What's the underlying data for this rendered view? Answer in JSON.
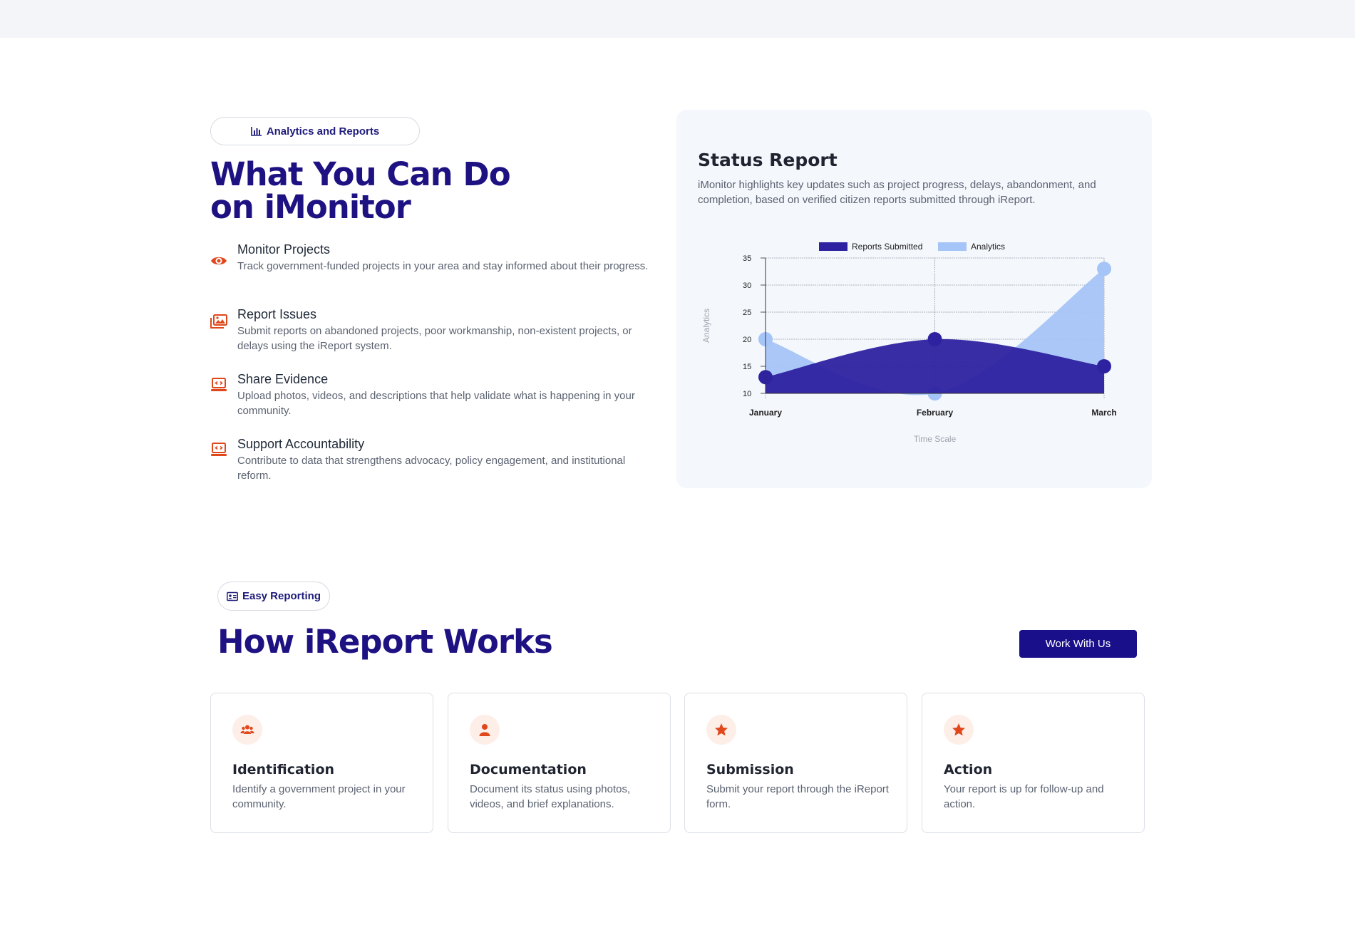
{
  "analytics_section": {
    "badge_icon": "bar-chart-icon",
    "badge_label": "Analytics and Reports",
    "title_line1": "What You Can Do",
    "title_line2": "on iMonitor",
    "features": [
      {
        "icon": "eye-icon",
        "title": "Monitor Projects",
        "description": "Track government-funded projects in your area and stay informed about their progress."
      },
      {
        "icon": "images-icon",
        "title": "Report Issues",
        "description": "Submit reports on abandoned projects, poor workmanship, non-existent projects, or delays using the iReport system."
      },
      {
        "icon": "laptop-code-icon",
        "title": "Share Evidence",
        "description": "Upload photos, videos, and descriptions that help validate what is happening in your community."
      },
      {
        "icon": "laptop-code-icon",
        "title": "Support Accountability",
        "description": "Contribute to data that strengthens advocacy, policy engagement, and institutional reform."
      }
    ]
  },
  "status_report": {
    "title": "Status Report",
    "description": "iMonitor highlights key updates such as project progress, delays, abandonment, and completion, based on verified citizen reports submitted through iReport."
  },
  "chart_data": {
    "type": "area",
    "categories": [
      "January",
      "February",
      "March"
    ],
    "series": [
      {
        "name": "Reports Submitted",
        "values": [
          13,
          20,
          15
        ],
        "color": "#2e22a0"
      },
      {
        "name": "Analytics",
        "values": [
          20,
          10,
          33
        ],
        "color": "#a5c4f7"
      }
    ],
    "xlabel": "Time Scale",
    "ylabel": "Analytics",
    "ylim": [
      10,
      35
    ],
    "yticks": [
      10,
      15,
      20,
      25,
      30,
      35
    ],
    "grid": true,
    "legend": "top-center"
  },
  "how_section": {
    "badge_icon": "id-card-icon",
    "badge_label": "Easy Reporting",
    "title": "How iReport Works",
    "cta_label": "Work With Us",
    "accent_color": "#1a0f8a",
    "steps": [
      {
        "icon": "users-icon",
        "title": "Identification",
        "description": "Identify a government project in your community."
      },
      {
        "icon": "user-icon",
        "title": "Documentation",
        "description": "Document its status using photos, videos, and brief explanations."
      },
      {
        "icon": "star-icon",
        "title": "Submission",
        "description": "Submit your report through the iReport form."
      },
      {
        "icon": "star-icon",
        "title": "Action",
        "description": "Your report is up for follow-up and action."
      }
    ]
  }
}
